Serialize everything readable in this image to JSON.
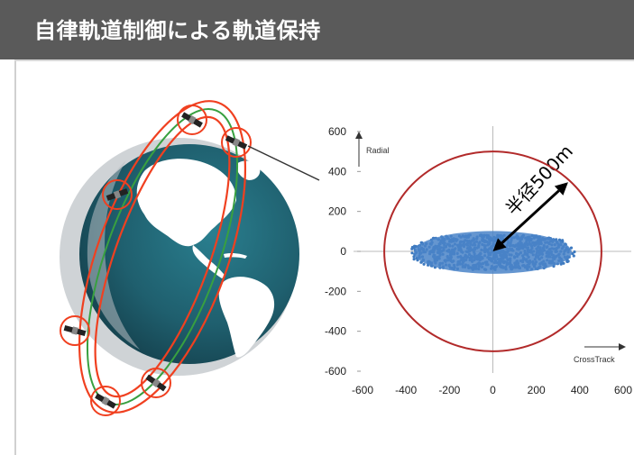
{
  "header": {
    "title": "自律軌道制御による軌道保持"
  },
  "colors": {
    "title_bg": "#5a5a5a",
    "orbit_red": "#f04020",
    "orbit_green": "#38a040",
    "ocean": "#1f5f6e",
    "land": "#ffffff",
    "tolerance_circle": "#b22a2a",
    "scatter": "#3e7ac0"
  },
  "icons": {
    "satellite": "satellite-icon",
    "globe": "earth-globe"
  },
  "chart_data": {
    "type": "scatter",
    "xlabel": "CrossTrack",
    "ylabel": "Radial",
    "xlim": [
      -600,
      600
    ],
    "ylim": [
      -600,
      600
    ],
    "xticks": [
      "-600",
      "-400",
      "-200",
      "0",
      "200",
      "400",
      "600"
    ],
    "yticks": [
      "600",
      "400",
      "200",
      "0",
      "-200",
      "-400",
      "-600"
    ],
    "grid": false,
    "radius_annotation": "半径500m",
    "tolerance_radius": 500,
    "scatter_extent": {
      "x": [
        -380,
        380
      ],
      "y": [
        -130,
        120
      ]
    }
  }
}
